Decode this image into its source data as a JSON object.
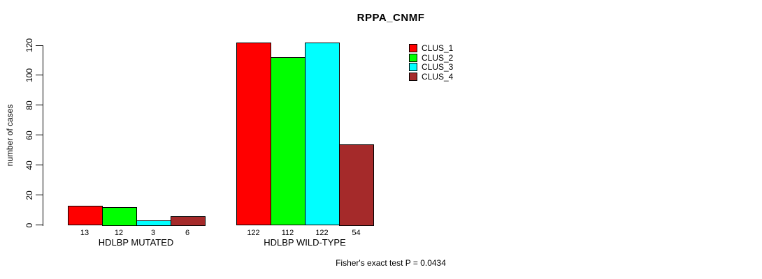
{
  "chart_data": {
    "type": "bar",
    "title": "RPPA_CNMF",
    "ylabel": "number of cases",
    "xlabel": "",
    "ylim": [
      0,
      120
    ],
    "yticks": [
      0,
      20,
      40,
      60,
      80,
      100,
      120
    ],
    "grid": false,
    "legend_position": "right",
    "categories": [
      "HDLBP MUTATED",
      "HDLBP WILD-TYPE"
    ],
    "series": [
      {
        "name": "CLUS_1",
        "color": "#ff0000",
        "values": [
          13,
          122
        ]
      },
      {
        "name": "CLUS_2",
        "color": "#00ff00",
        "values": [
          12,
          112
        ]
      },
      {
        "name": "CLUS_3",
        "color": "#00ffff",
        "values": [
          3,
          122
        ]
      },
      {
        "name": "CLUS_4",
        "color": "#a52a2a",
        "values": [
          6,
          54
        ]
      }
    ],
    "bar_value_labels": [
      [
        "13",
        "12",
        "3",
        "6"
      ],
      [
        "122",
        "112",
        "122",
        "54"
      ]
    ],
    "annotation": "Fisher's exact test P = 0.0434",
    "colors": {
      "background": "#ffffff",
      "axis": "#000000",
      "text": "#000000"
    }
  }
}
